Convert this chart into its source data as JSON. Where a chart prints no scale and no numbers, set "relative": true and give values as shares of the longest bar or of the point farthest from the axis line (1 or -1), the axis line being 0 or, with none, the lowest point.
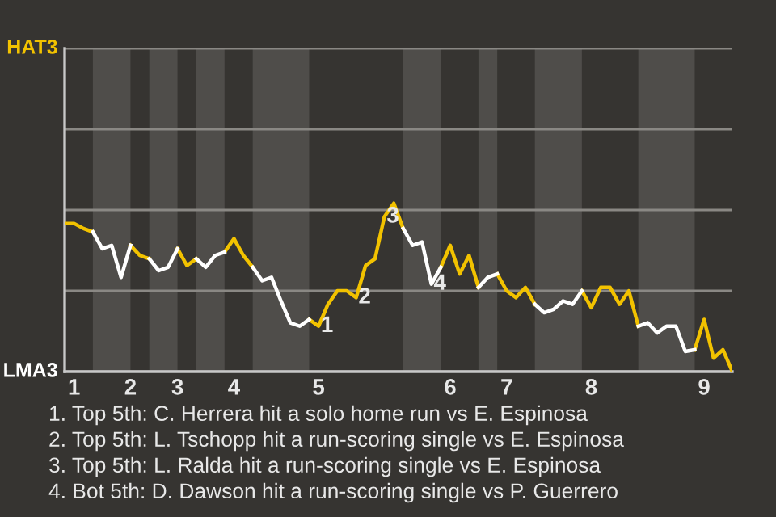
{
  "chart_data": {
    "type": "line",
    "relative": true,
    "categories": [
      null,
      "1",
      null,
      null,
      null,
      null,
      null,
      "2",
      null,
      null,
      null,
      null,
      "3",
      null,
      null,
      null,
      null,
      null,
      "4",
      null,
      null,
      null,
      null,
      null,
      null,
      null,
      null,
      "5",
      null,
      null,
      null,
      null,
      null,
      null,
      null,
      null,
      null,
      null,
      null,
      null,
      null,
      "6",
      null,
      null,
      null,
      null,
      null,
      "7",
      null,
      null,
      null,
      null,
      null,
      null,
      null,
      null,
      "8",
      null,
      null,
      null,
      null,
      null,
      null,
      null,
      null,
      null,
      null,
      null,
      "9",
      null,
      null,
      null
    ],
    "series": [
      {
        "color": "#f2c200",
        "values": [
          0.88,
          0.88,
          0.85,
          0.83,
          null,
          null,
          null,
          0.75,
          0.69,
          0.67,
          null,
          null,
          0.73,
          0.63,
          0.67,
          null,
          null,
          0.71,
          0.79,
          0.69,
          0.62,
          null,
          null,
          null,
          null,
          null,
          0.31,
          0.27,
          0.4,
          0.48,
          0.48,
          0.44,
          0.63,
          0.67,
          0.92,
          1,
          0.85,
          null,
          null,
          null,
          0.62,
          0.75,
          0.58,
          0.69,
          0.5,
          null,
          0.58,
          0.48,
          0.44,
          0.5,
          0.4,
          null,
          null,
          null,
          null,
          0.48,
          0.38,
          0.5,
          0.5,
          0.4,
          0.48,
          0.27,
          null,
          null,
          null,
          null,
          null,
          0.13,
          0.31,
          0.08,
          0.13,
          0
        ]
      },
      {
        "color": "#ffffff",
        "values": [
          null,
          null,
          null,
          0.83,
          0.73,
          0.75,
          0.56,
          0.75,
          null,
          0.67,
          0.6,
          0.62,
          0.73,
          null,
          0.67,
          0.62,
          0.69,
          0.71,
          null,
          null,
          0.62,
          0.54,
          0.56,
          0.42,
          0.29,
          0.27,
          0.31,
          null,
          null,
          null,
          null,
          null,
          null,
          null,
          null,
          null,
          0.85,
          0.75,
          0.77,
          0.52,
          0.62,
          null,
          null,
          null,
          0.5,
          0.56,
          0.58,
          null,
          null,
          null,
          0.4,
          0.35,
          0.37,
          0.42,
          0.4,
          0.48,
          null,
          null,
          null,
          null,
          null,
          0.27,
          0.29,
          0.23,
          0.27,
          0.27,
          0.12,
          0.13,
          null,
          null,
          null,
          null
        ]
      }
    ],
    "ylim": [
      0,
      1.92
    ],
    "grid": "y",
    "legend": false,
    "marker": "none",
    "line_style": "solid",
    "annotations": [
      "HAT3",
      "LMA3",
      {
        "text": "1",
        "y": 0.27
      },
      {
        "text": "2",
        "y": 0.44
      },
      {
        "text": "3",
        "y": 0.92
      },
      {
        "text": "4",
        "y": 0.52
      },
      "1. Top 5th: C. Herrera hit a solo home run vs E. Espinosa",
      "2. Top 5th: L. Tschopp hit a run-scoring single vs E. Espinosa",
      "3. Top 5th: L. Ralda hit a run-scoring single vs E. Espinosa",
      "4. Bot 5th: D. Dawson hit a run-scoring single vs P. Guerrero"
    ]
  }
}
